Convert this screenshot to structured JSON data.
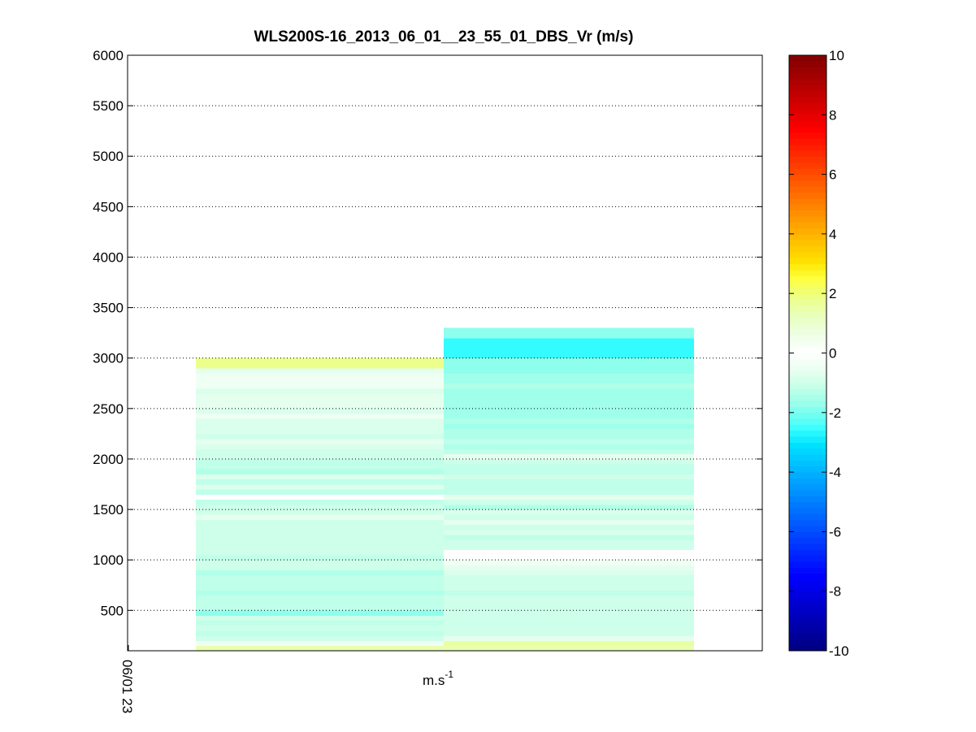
{
  "chart_data": {
    "type": "heatmap",
    "title": "WLS200S-16_2013_06_01__23_55_01_DBS_Vr (m/s)",
    "xlabel": "m.s",
    "xlabel_superscript": "-1",
    "ylabel": "",
    "ylim": [
      100,
      6000
    ],
    "yticks": [
      500,
      1000,
      1500,
      2000,
      2500,
      3000,
      3500,
      4000,
      4500,
      5000,
      5500,
      6000
    ],
    "xtick_labels": [
      "06/01 23"
    ],
    "grid": true,
    "colorbar": {
      "clim": [
        -10,
        10
      ],
      "ticks": [
        -10,
        -8,
        -6,
        -4,
        -2,
        0,
        2,
        4,
        6,
        8,
        10
      ],
      "placement": "right"
    },
    "columns": [
      {
        "cells": [
          {
            "z0": 100,
            "z1": 150,
            "v": 1.4
          },
          {
            "z0": 150,
            "z1": 200,
            "v": -0.4
          },
          {
            "z0": 200,
            "z1": 250,
            "v": -1.0
          },
          {
            "z0": 250,
            "z1": 300,
            "v": -1.2
          },
          {
            "z0": 300,
            "z1": 350,
            "v": -1.0
          },
          {
            "z0": 350,
            "z1": 400,
            "v": -1.2
          },
          {
            "z0": 400,
            "z1": 450,
            "v": -1.0
          },
          {
            "z0": 450,
            "z1": 500,
            "v": -1.8
          },
          {
            "z0": 500,
            "z1": 550,
            "v": -1.2
          },
          {
            "z0": 550,
            "z1": 600,
            "v": -1.2
          },
          {
            "z0": 600,
            "z1": 650,
            "v": -1.2
          },
          {
            "z0": 650,
            "z1": 700,
            "v": -1.4
          },
          {
            "z0": 700,
            "z1": 750,
            "v": -1.2
          },
          {
            "z0": 750,
            "z1": 800,
            "v": -1.2
          },
          {
            "z0": 800,
            "z1": 850,
            "v": -1.2
          },
          {
            "z0": 850,
            "z1": 900,
            "v": -1.4
          },
          {
            "z0": 900,
            "z1": 950,
            "v": -1.0
          },
          {
            "z0": 950,
            "z1": 1000,
            "v": -1.0
          },
          {
            "z0": 1000,
            "z1": 1050,
            "v": -1.2
          },
          {
            "z0": 1050,
            "z1": 1100,
            "v": -1.0
          },
          {
            "z0": 1100,
            "z1": 1150,
            "v": -1.0
          },
          {
            "z0": 1150,
            "z1": 1200,
            "v": -1.0
          },
          {
            "z0": 1200,
            "z1": 1250,
            "v": -1.0
          },
          {
            "z0": 1250,
            "z1": 1300,
            "v": -1.0
          },
          {
            "z0": 1300,
            "z1": 1350,
            "v": -1.0
          },
          {
            "z0": 1350,
            "z1": 1400,
            "v": -1.0
          },
          {
            "z0": 1400,
            "z1": 1450,
            "v": -0.6
          },
          {
            "z0": 1450,
            "z1": 1500,
            "v": -1.0
          },
          {
            "z0": 1500,
            "z1": 1550,
            "v": -1.0
          },
          {
            "z0": 1550,
            "z1": 1600,
            "v": -1.2
          },
          {
            "z0": 1600,
            "z1": 1650,
            "v": 0.0
          },
          {
            "z0": 1650,
            "z1": 1700,
            "v": -1.2
          },
          {
            "z0": 1700,
            "z1": 1750,
            "v": -0.8
          },
          {
            "z0": 1750,
            "z1": 1800,
            "v": -1.2
          },
          {
            "z0": 1800,
            "z1": 1850,
            "v": -0.8
          },
          {
            "z0": 1850,
            "z1": 1900,
            "v": -1.4
          },
          {
            "z0": 1900,
            "z1": 1950,
            "v": -1.2
          },
          {
            "z0": 1950,
            "z1": 2000,
            "v": -1.2
          },
          {
            "z0": 2000,
            "z1": 2050,
            "v": -1.0
          },
          {
            "z0": 2050,
            "z1": 2100,
            "v": -1.0
          },
          {
            "z0": 2100,
            "z1": 2150,
            "v": -0.8
          },
          {
            "z0": 2150,
            "z1": 2200,
            "v": -0.6
          },
          {
            "z0": 2200,
            "z1": 2250,
            "v": -1.0
          },
          {
            "z0": 2250,
            "z1": 2300,
            "v": -0.8
          },
          {
            "z0": 2300,
            "z1": 2350,
            "v": -0.8
          },
          {
            "z0": 2350,
            "z1": 2400,
            "v": -0.8
          },
          {
            "z0": 2400,
            "z1": 2450,
            "v": -0.4
          },
          {
            "z0": 2450,
            "z1": 2500,
            "v": -0.8
          },
          {
            "z0": 2500,
            "z1": 2550,
            "v": -0.6
          },
          {
            "z0": 2550,
            "z1": 2600,
            "v": -0.6
          },
          {
            "z0": 2600,
            "z1": 2650,
            "v": -0.6
          },
          {
            "z0": 2650,
            "z1": 2700,
            "v": -0.8
          },
          {
            "z0": 2700,
            "z1": 2750,
            "v": -0.4
          },
          {
            "z0": 2750,
            "z1": 2800,
            "v": -0.4
          },
          {
            "z0": 2800,
            "z1": 2850,
            "v": -0.4
          },
          {
            "z0": 2850,
            "z1": 2900,
            "v": -0.6
          },
          {
            "z0": 2900,
            "z1": 3000,
            "v": 1.8
          }
        ]
      },
      {
        "cells": [
          {
            "z0": 100,
            "z1": 150,
            "v": 1.4
          },
          {
            "z0": 150,
            "z1": 200,
            "v": 1.6
          },
          {
            "z0": 200,
            "z1": 250,
            "v": -0.6
          },
          {
            "z0": 250,
            "z1": 300,
            "v": -1.0
          },
          {
            "z0": 300,
            "z1": 350,
            "v": -1.0
          },
          {
            "z0": 350,
            "z1": 400,
            "v": -1.0
          },
          {
            "z0": 400,
            "z1": 450,
            "v": -1.0
          },
          {
            "z0": 450,
            "z1": 500,
            "v": -1.0
          },
          {
            "z0": 500,
            "z1": 550,
            "v": -1.0
          },
          {
            "z0": 550,
            "z1": 600,
            "v": -1.0
          },
          {
            "z0": 600,
            "z1": 650,
            "v": -1.0
          },
          {
            "z0": 650,
            "z1": 700,
            "v": -1.2
          },
          {
            "z0": 700,
            "z1": 750,
            "v": -1.0
          },
          {
            "z0": 750,
            "z1": 800,
            "v": -1.0
          },
          {
            "z0": 800,
            "z1": 850,
            "v": -1.0
          },
          {
            "z0": 850,
            "z1": 900,
            "v": -0.8
          },
          {
            "z0": 900,
            "z1": 950,
            "v": -0.6
          },
          {
            "z0": 950,
            "z1": 1000,
            "v": -0.4
          },
          {
            "z0": 1000,
            "z1": 1050,
            "v": 0.0
          },
          {
            "z0": 1050,
            "z1": 1100,
            "v": 0.0
          },
          {
            "z0": 1100,
            "z1": 1150,
            "v": -1.0
          },
          {
            "z0": 1150,
            "z1": 1200,
            "v": -1.0
          },
          {
            "z0": 1200,
            "z1": 1250,
            "v": -1.2
          },
          {
            "z0": 1250,
            "z1": 1300,
            "v": -0.8
          },
          {
            "z0": 1300,
            "z1": 1350,
            "v": -1.0
          },
          {
            "z0": 1350,
            "z1": 1400,
            "v": -0.6
          },
          {
            "z0": 1400,
            "z1": 1450,
            "v": -1.0
          },
          {
            "z0": 1450,
            "z1": 1500,
            "v": -0.8
          },
          {
            "z0": 1500,
            "z1": 1550,
            "v": -1.4
          },
          {
            "z0": 1550,
            "z1": 1600,
            "v": -1.0
          },
          {
            "z0": 1600,
            "z1": 1650,
            "v": -0.6
          },
          {
            "z0": 1650,
            "z1": 1700,
            "v": -1.2
          },
          {
            "z0": 1700,
            "z1": 1750,
            "v": -1.2
          },
          {
            "z0": 1750,
            "z1": 1800,
            "v": -1.2
          },
          {
            "z0": 1800,
            "z1": 1850,
            "v": -1.0
          },
          {
            "z0": 1850,
            "z1": 1900,
            "v": -1.2
          },
          {
            "z0": 1900,
            "z1": 1950,
            "v": -1.2
          },
          {
            "z0": 1950,
            "z1": 2000,
            "v": -1.0
          },
          {
            "z0": 2000,
            "z1": 2050,
            "v": -0.6
          },
          {
            "z0": 2050,
            "z1": 2100,
            "v": -1.2
          },
          {
            "z0": 2100,
            "z1": 2150,
            "v": -1.4
          },
          {
            "z0": 2150,
            "z1": 2200,
            "v": -1.2
          },
          {
            "z0": 2200,
            "z1": 2250,
            "v": -1.4
          },
          {
            "z0": 2250,
            "z1": 2300,
            "v": -1.4
          },
          {
            "z0": 2300,
            "z1": 2350,
            "v": -1.6
          },
          {
            "z0": 2350,
            "z1": 2400,
            "v": -1.4
          },
          {
            "z0": 2400,
            "z1": 2450,
            "v": -1.6
          },
          {
            "z0": 2450,
            "z1": 2500,
            "v": -1.6
          },
          {
            "z0": 2500,
            "z1": 2550,
            "v": -1.6
          },
          {
            "z0": 2550,
            "z1": 2600,
            "v": -1.6
          },
          {
            "z0": 2600,
            "z1": 2650,
            "v": -1.6
          },
          {
            "z0": 2650,
            "z1": 2700,
            "v": -1.6
          },
          {
            "z0": 2700,
            "z1": 2750,
            "v": -1.4
          },
          {
            "z0": 2750,
            "z1": 2800,
            "v": -1.6
          },
          {
            "z0": 2800,
            "z1": 2850,
            "v": -1.6
          },
          {
            "z0": 2850,
            "z1": 2900,
            "v": -1.8
          },
          {
            "z0": 2900,
            "z1": 2950,
            "v": -1.8
          },
          {
            "z0": 2950,
            "z1": 3000,
            "v": -1.8
          },
          {
            "z0": 3000,
            "z1": 3200,
            "v": -2.6
          },
          {
            "z0": 3200,
            "z1": 3300,
            "v": -1.8
          }
        ]
      }
    ]
  }
}
